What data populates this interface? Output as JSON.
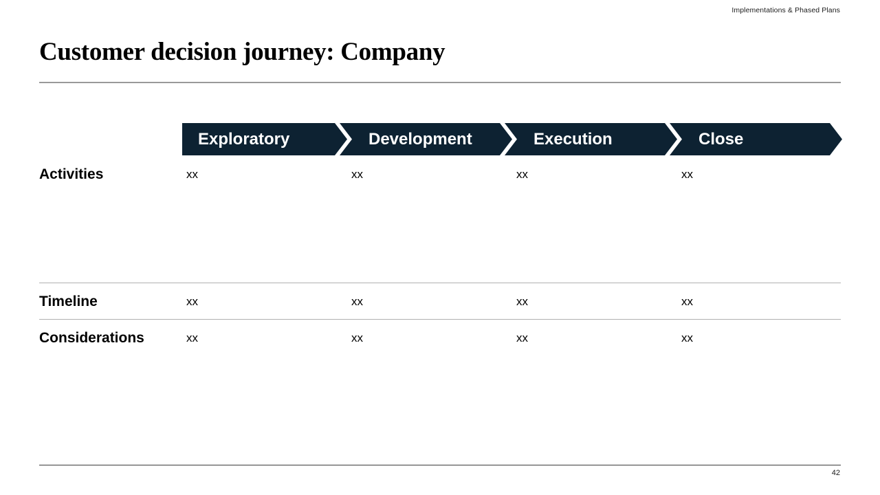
{
  "slide": {
    "eyebrow": "Implementations & Phased Plans",
    "title": "Customer decision journey: Company",
    "page_number": "42"
  },
  "phases": [
    "Exploratory",
    "Development",
    "Execution",
    "Close"
  ],
  "table": {
    "rows": [
      {
        "label": "Activities",
        "cells": [
          "xx",
          "xx",
          "xx",
          "xx"
        ]
      },
      {
        "label": "Timeline",
        "cells": [
          "xx",
          "xx",
          "xx",
          "xx"
        ]
      },
      {
        "label": "Considerations",
        "cells": [
          "xx",
          "xx",
          "xx",
          "xx"
        ]
      }
    ]
  },
  "colors": {
    "phase_chevron": "#0d2232",
    "phase_text": "#ffffff"
  }
}
